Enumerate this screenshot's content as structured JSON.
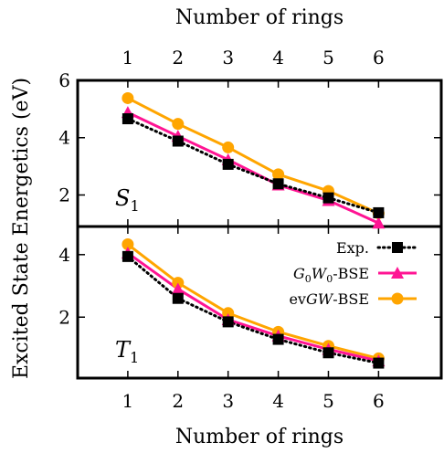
{
  "chart_data": {
    "type": "line",
    "top_xlabel": "Number of rings",
    "bottom_xlabel": "Number of rings",
    "ylabel": "Excited State Energetics (eV)",
    "x": [
      1,
      2,
      3,
      4,
      5,
      6
    ],
    "x_ticks": [
      "1",
      "2",
      "3",
      "4",
      "5",
      "6"
    ],
    "xlim": [
      0,
      7.25
    ],
    "legend_position": "top-right of lower panel",
    "series_styles": [
      {
        "name": "Exp.",
        "color": "#000000",
        "marker": "square",
        "dash": "dotted"
      },
      {
        "name": "G0W0-BSE",
        "color": "#ff1493",
        "marker": "triangle",
        "dash": "solid"
      },
      {
        "name": "evGW-BSE",
        "color": "#ffa500",
        "marker": "circle",
        "dash": "solid"
      }
    ],
    "panels": [
      {
        "label": "S1",
        "ylim": [
          0.9,
          6.0
        ],
        "y_ticks": [
          2,
          4,
          6
        ],
        "y_tick_labels": [
          "2",
          "4",
          "6"
        ],
        "series": [
          {
            "name": "Exp.",
            "values": [
              4.66,
              3.88,
              3.07,
              2.39,
              1.9,
              1.38
            ]
          },
          {
            "name": "G0W0-BSE",
            "values": [
              4.88,
              4.05,
              3.23,
              2.35,
              1.81,
              1.02
            ]
          },
          {
            "name": "evGW-BSE",
            "values": [
              5.38,
              4.48,
              3.66,
              2.72,
              2.14,
              1.36
            ]
          }
        ]
      },
      {
        "label": "T1",
        "ylim": [
          0.05,
          4.9
        ],
        "y_ticks": [
          2,
          4
        ],
        "y_tick_labels": [
          "2",
          "4"
        ],
        "series": [
          {
            "name": "Exp.",
            "values": [
              3.94,
              2.6,
              1.85,
              1.29,
              0.86,
              0.53
            ]
          },
          {
            "name": "G0W0-BSE",
            "values": [
              4.05,
              2.9,
              1.92,
              1.4,
              0.97,
              0.6
            ]
          },
          {
            "name": "evGW-BSE",
            "values": [
              4.33,
              3.1,
              2.13,
              1.53,
              1.08,
              0.68
            ]
          }
        ]
      }
    ]
  }
}
